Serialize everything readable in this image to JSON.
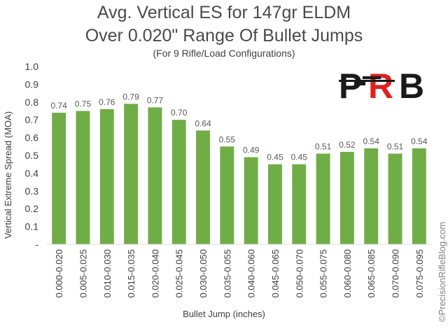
{
  "header": {
    "title_line1": "Avg. Vertical ES for 147gr ELDM",
    "title_line2": "Over 0.020\" Range Of Bullet Jumps",
    "subtitle": "(For 9 Rifle/Load Configurations)"
  },
  "logo": {
    "text": "PRB"
  },
  "watermark": "©PrecisionRifleBlog.com",
  "colors": {
    "bar": "#70ad47",
    "axis_text": "#595959",
    "logo_black": "#1a1a1a",
    "logo_red": "#e02020"
  },
  "chart_data": {
    "type": "bar",
    "title": "Avg. Vertical ES for 147gr ELDM Over 0.020\" Range Of Bullet Jumps",
    "subtitle": "(For 9 Rifle/Load Configurations)",
    "xlabel": "Bullet Jump (inches)",
    "ylabel": "Vertical Extreme Spread (MOA)",
    "ylim": [
      0,
      1.0
    ],
    "yticks": [
      "-",
      "0.1",
      "0.2",
      "0.3",
      "0.4",
      "0.5",
      "0.6",
      "0.7",
      "0.8",
      "0.9",
      "1.0"
    ],
    "grid": false,
    "categories": [
      "0.000-0.020",
      "0.005-0.025",
      "0.010-0.030",
      "0.015-0.035",
      "0.020-0.040",
      "0.025-0.045",
      "0.030-0.050",
      "0.035-0.055",
      "0.040-0.060",
      "0.045-0.065",
      "0.050-0.070",
      "0.055-0.075",
      "0.060-0.080",
      "0.065-0.085",
      "0.070-0.090",
      "0.075-0.095"
    ],
    "values": [
      0.74,
      0.75,
      0.76,
      0.79,
      0.77,
      0.7,
      0.64,
      0.55,
      0.49,
      0.45,
      0.45,
      0.51,
      0.52,
      0.54,
      0.51,
      0.54
    ],
    "data_labels": [
      "0.74",
      "0.75",
      "0.76",
      "0.79",
      "0.77",
      "0.70",
      "0.64",
      "0.55",
      "0.49",
      "0.45",
      "0.45",
      "0.51",
      "0.52",
      "0.54",
      "0.51",
      "0.54"
    ]
  }
}
